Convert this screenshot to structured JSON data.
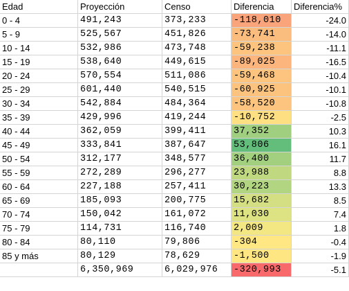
{
  "table": {
    "header": [
      "Edad",
      "Proyección",
      "Censo",
      "Diferencia",
      "Diferencia%"
    ],
    "rows": [
      {
        "edad": "0 - 4",
        "proyeccion": "491,243",
        "censo": "373,233",
        "diferencia": "-118,010",
        "pct": "-24.0",
        "color": "#f9a47a"
      },
      {
        "edad": "5 - 9",
        "proyeccion": "525,567",
        "censo": "451,826",
        "diferencia": "-73,741",
        "pct": "-14.0",
        "color": "#fbbd7e"
      },
      {
        "edad": "10 - 14",
        "proyeccion": "532,986",
        "censo": "473,748",
        "diferencia": "-59,238",
        "pct": "-11.1",
        "color": "#fcc47f"
      },
      {
        "edad": "15 - 19",
        "proyeccion": "538,640",
        "censo": "449,615",
        "diferencia": "-89,025",
        "pct": "-16.5",
        "color": "#fbb57d"
      },
      {
        "edad": "20 - 24",
        "proyeccion": "570,554",
        "censo": "511,086",
        "diferencia": "-59,468",
        "pct": "-10.4",
        "color": "#fcc47f"
      },
      {
        "edad": "25 - 29",
        "proyeccion": "601,440",
        "censo": "540,515",
        "diferencia": "-60,925",
        "pct": "-10.1",
        "color": "#fcc37f"
      },
      {
        "edad": "30 - 34",
        "proyeccion": "542,884",
        "censo": "484,364",
        "diferencia": "-58,520",
        "pct": "-10.8",
        "color": "#fcc47f"
      },
      {
        "edad": "35 - 39",
        "proyeccion": "429,996",
        "censo": "419,244",
        "diferencia": "-10,752",
        "pct": "-2.5",
        "color": "#fedf82"
      },
      {
        "edad": "40 - 44",
        "proyeccion": "362,059",
        "censo": "399,411",
        "diferencia": "37,352",
        "pct": "10.3",
        "color": "#9fcf7f"
      },
      {
        "edad": "45 - 49",
        "proyeccion": "333,841",
        "censo": "387,647",
        "diferencia": "53,806",
        "pct": "16.1",
        "color": "#63be7b"
      },
      {
        "edad": "50 - 54",
        "proyeccion": "312,177",
        "censo": "348,577",
        "diferencia": "36,400",
        "pct": "11.7",
        "color": "#a2d07f"
      },
      {
        "edad": "55 - 59",
        "proyeccion": "272,289",
        "censo": "296,277",
        "diferencia": "23,988",
        "pct": "8.8",
        "color": "#c0d981"
      },
      {
        "edad": "60 - 64",
        "proyeccion": "227,188",
        "censo": "257,411",
        "diferencia": "30,223",
        "pct": "13.3",
        "color": "#b1d580"
      },
      {
        "edad": "65 - 69",
        "proyeccion": "185,093",
        "censo": "200,775",
        "diferencia": "15,682",
        "pct": "8.5",
        "color": "#d3df82"
      },
      {
        "edad": "70 - 74",
        "proyeccion": "150,042",
        "censo": "161,072",
        "diferencia": "11,030",
        "pct": "7.4",
        "color": "#dde282"
      },
      {
        "edad": "75 - 79",
        "proyeccion": "114,731",
        "censo": "116,740",
        "diferencia": "2,009",
        "pct": "1.8",
        "color": "#f3e783"
      },
      {
        "edad": "80 - 84",
        "proyeccion": "80,110",
        "censo": "79,806",
        "diferencia": "-304",
        "pct": "-0.4",
        "color": "#ffe884"
      },
      {
        "edad": "85 y más",
        "proyeccion": "80,129",
        "censo": "78,629",
        "diferencia": "-1,500",
        "pct": "-1.9",
        "color": "#fee683"
      }
    ],
    "total": {
      "proyeccion": "6,350,969",
      "censo": "6,029,976",
      "diferencia": "-320,993",
      "pct": "-5.1",
      "color": "#f8696b"
    }
  }
}
